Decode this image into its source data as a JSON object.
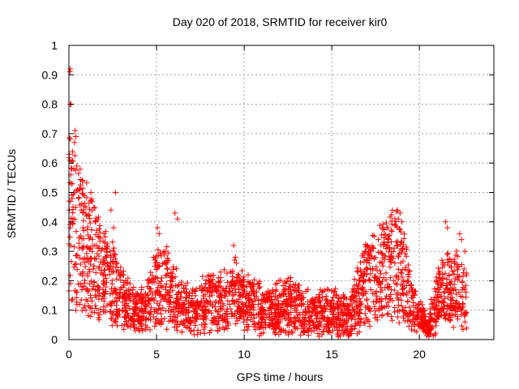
{
  "chart_data": {
    "type": "scatter",
    "title": "Day 020 of 2018, SRMTID for receiver kir0",
    "xlabel": "GPS time / hours",
    "ylabel": "SRMTID / TECUs",
    "xlim": [
      0,
      24.25
    ],
    "ylim": [
      0,
      1
    ],
    "xticks": [
      0,
      5,
      10,
      15,
      20
    ],
    "yticks": [
      0,
      0.1,
      0.2,
      0.3,
      0.4,
      0.5,
      0.6,
      0.7,
      0.8,
      0.9,
      1
    ],
    "grid": true,
    "marker": "+",
    "color": "#ff0000",
    "series": [
      {
        "name": "SRMTID",
        "trend": [
          [
            0.0,
            0.4
          ],
          [
            0.3,
            0.35
          ],
          [
            0.6,
            0.32
          ],
          [
            1.0,
            0.28
          ],
          [
            1.5,
            0.25
          ],
          [
            2.0,
            0.2
          ],
          [
            2.5,
            0.18
          ],
          [
            3.0,
            0.14
          ],
          [
            3.5,
            0.1
          ],
          [
            4.0,
            0.08
          ],
          [
            4.5,
            0.12
          ],
          [
            5.0,
            0.16
          ],
          [
            5.5,
            0.17
          ],
          [
            6.0,
            0.14
          ],
          [
            6.5,
            0.1
          ],
          [
            7.0,
            0.09
          ],
          [
            7.5,
            0.1
          ],
          [
            8.0,
            0.12
          ],
          [
            8.5,
            0.11
          ],
          [
            9.0,
            0.12
          ],
          [
            9.5,
            0.13
          ],
          [
            10.0,
            0.12
          ],
          [
            10.5,
            0.11
          ],
          [
            11.0,
            0.1
          ],
          [
            11.5,
            0.09
          ],
          [
            12.0,
            0.1
          ],
          [
            12.5,
            0.11
          ],
          [
            13.0,
            0.1
          ],
          [
            13.5,
            0.09
          ],
          [
            14.0,
            0.08
          ],
          [
            14.5,
            0.09
          ],
          [
            15.0,
            0.09
          ],
          [
            15.5,
            0.08
          ],
          [
            16.0,
            0.07
          ],
          [
            16.5,
            0.13
          ],
          [
            17.0,
            0.18
          ],
          [
            17.5,
            0.2
          ],
          [
            18.0,
            0.22
          ],
          [
            18.5,
            0.24
          ],
          [
            19.0,
            0.22
          ],
          [
            19.5,
            0.12
          ],
          [
            20.0,
            0.07
          ],
          [
            20.5,
            0.04
          ],
          [
            21.0,
            0.12
          ],
          [
            21.5,
            0.17
          ],
          [
            22.0,
            0.16
          ],
          [
            22.5,
            0.14
          ],
          [
            22.7,
            0.12
          ]
        ],
        "outliers": [
          [
            0.05,
            0.91
          ],
          [
            0.08,
            0.92
          ],
          [
            0.08,
            0.8
          ],
          [
            0.12,
            0.8
          ],
          [
            0.02,
            0.63
          ],
          [
            0.05,
            0.61
          ],
          [
            0.35,
            0.71
          ],
          [
            0.4,
            0.69
          ],
          [
            0.32,
            0.67
          ],
          [
            0.45,
            0.59
          ],
          [
            0.28,
            0.58
          ],
          [
            0.1,
            0.56
          ],
          [
            0.18,
            0.53
          ],
          [
            0.3,
            0.5
          ],
          [
            0.55,
            0.48
          ],
          [
            1.25,
            0.5
          ],
          [
            2.65,
            0.5
          ],
          [
            1.0,
            0.42
          ],
          [
            0.7,
            0.44
          ],
          [
            1.5,
            0.4
          ],
          [
            2.4,
            0.44
          ],
          [
            2.55,
            0.38
          ],
          [
            5.05,
            0.38
          ],
          [
            5.15,
            0.36
          ],
          [
            6.05,
            0.43
          ],
          [
            6.2,
            0.41
          ],
          [
            9.4,
            0.32
          ],
          [
            9.5,
            0.28
          ],
          [
            9.45,
            0.27
          ],
          [
            9.55,
            0.26
          ],
          [
            18.75,
            0.44
          ],
          [
            18.9,
            0.43
          ],
          [
            18.8,
            0.41
          ],
          [
            19.0,
            0.4
          ],
          [
            18.6,
            0.39
          ],
          [
            21.5,
            0.4
          ],
          [
            21.6,
            0.38
          ],
          [
            22.3,
            0.36
          ],
          [
            22.4,
            0.34
          ],
          [
            22.6,
            0.3
          ],
          [
            20.4,
            0.03
          ],
          [
            20.5,
            0.02
          ],
          [
            20.6,
            0.03
          ],
          [
            4.2,
            0.03
          ],
          [
            14.0,
            0.04
          ],
          [
            15.9,
            0.03
          ],
          [
            17.2,
            0.3
          ],
          [
            18.2,
            0.33
          ],
          [
            2.0,
            0.36
          ],
          [
            0.8,
            0.38
          ]
        ]
      }
    ]
  }
}
